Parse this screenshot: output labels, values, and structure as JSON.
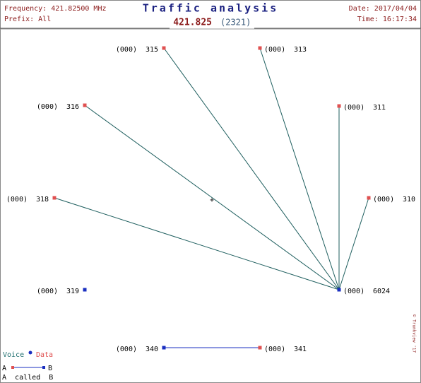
{
  "header": {
    "frequency": "Frequency: 421.82500 MHz",
    "prefix": "Prefix: All",
    "title": "Traffic analysis",
    "date": "Date: 2017/04/04",
    "time": "Time: 16:17:34",
    "channel": "421.825",
    "count": "(2321)"
  },
  "nodes": [
    {
      "prefix": "(000)",
      "id": "315",
      "color": "#e05050"
    },
    {
      "prefix": "(000)",
      "id": "313",
      "color": "#e05050"
    },
    {
      "prefix": "(000)",
      "id": "316",
      "color": "#e05050"
    },
    {
      "prefix": "(000)",
      "id": "311",
      "color": "#e05050"
    },
    {
      "prefix": "(000)",
      "id": "318",
      "color": "#e05050"
    },
    {
      "prefix": "(000)",
      "id": "310",
      "color": "#e05050"
    },
    {
      "prefix": "(000)",
      "id": "319",
      "color": "#1a2fc0"
    },
    {
      "prefix": "(000)",
      "id": "6024",
      "color": "#1a2fc0"
    },
    {
      "prefix": "(000)",
      "id": "340",
      "color": "#1a2fc0"
    },
    {
      "prefix": "(000)",
      "id": "341",
      "color": "#e05050"
    }
  ],
  "legend": {
    "voice": "Voice",
    "data": "Data",
    "a": "A",
    "b": "B",
    "caption": "A  called  B"
  },
  "watermark": "© Trunkview '17"
}
